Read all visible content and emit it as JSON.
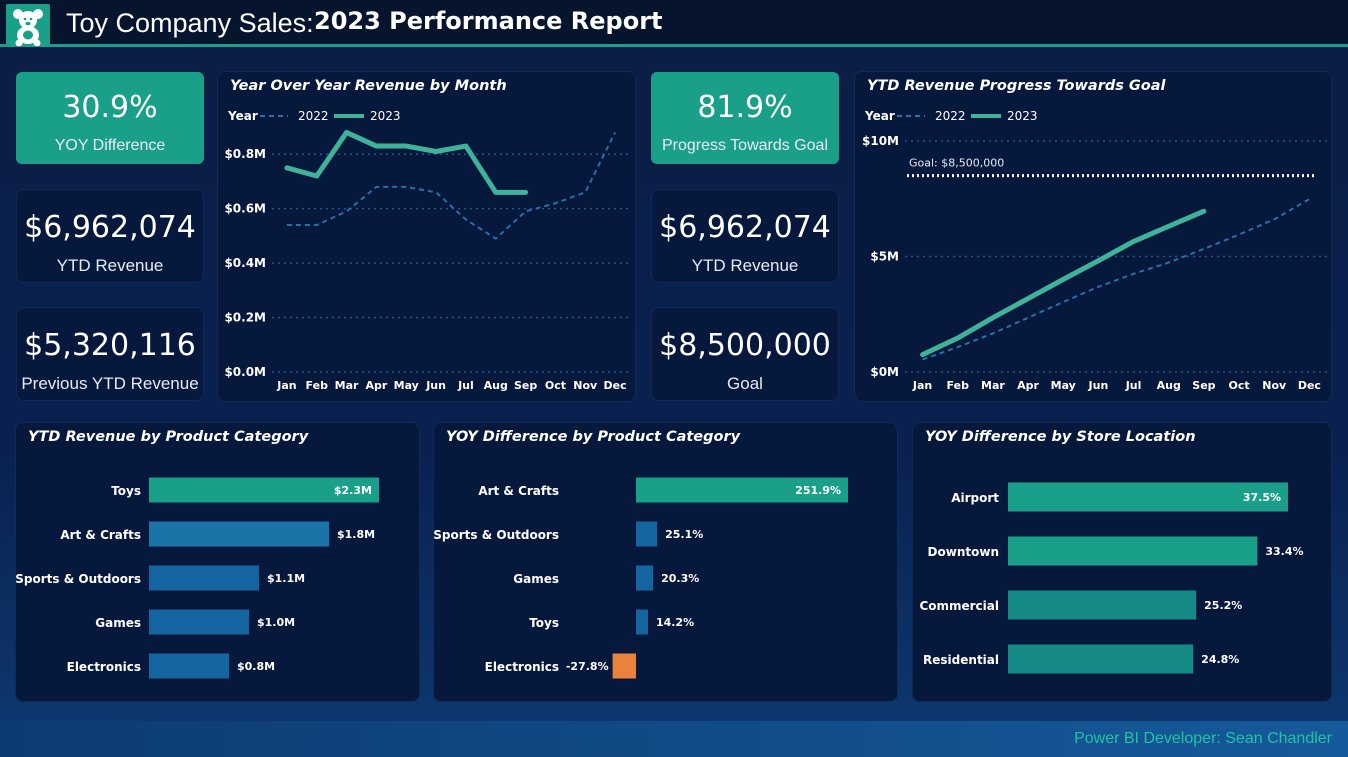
{
  "header": {
    "title_prefix": "Toy Company Sales:",
    "title_main": "2023 Performance Report"
  },
  "colors": {
    "accent": "#1aa089",
    "accent_light": "#3fb39a",
    "dark_blue": "#1565a0",
    "mid_blue": "#1a74a8",
    "negative": "#e8823c",
    "panel": "#07183d"
  },
  "kpis_left": [
    {
      "value": "30.9%",
      "label": "YOY Difference",
      "style": "green"
    },
    {
      "value": "$6,962,074",
      "label": "YTD Revenue",
      "style": "dark"
    },
    {
      "value": "$5,320,116",
      "label": "Previous YTD Revenue",
      "style": "dark"
    }
  ],
  "kpis_mid": [
    {
      "value": "81.9%",
      "label": "Progress Towards Goal",
      "style": "green"
    },
    {
      "value": "$6,962,074",
      "label": "YTD Revenue",
      "style": "dark"
    },
    {
      "value": "$8,500,000",
      "label": "Goal",
      "style": "dark"
    }
  ],
  "charts": {
    "yoy_month": {
      "title": "Year Over Year Revenue by Month",
      "legend_title": "Year",
      "legend": [
        "2022",
        "2023"
      ],
      "ytick_labels": [
        "$0.0M",
        "$0.2M",
        "$0.4M",
        "$0.6M",
        "$0.8M"
      ],
      "xtick_labels": [
        "Jan",
        "Feb",
        "Mar",
        "Apr",
        "May",
        "Jun",
        "Jul",
        "Aug",
        "Sep",
        "Oct",
        "Nov",
        "Dec"
      ]
    },
    "goal_progress": {
      "title": "YTD Revenue Progress Towards Goal",
      "legend_title": "Year",
      "legend": [
        "2022",
        "2023"
      ],
      "ytick_labels": [
        "$0M",
        "$5M",
        "$10M"
      ],
      "goal_label": "Goal: $8,500,000",
      "xtick_labels": [
        "Jan",
        "Feb",
        "Mar",
        "Apr",
        "May",
        "Jun",
        "Jul",
        "Aug",
        "Sep",
        "Oct",
        "Nov",
        "Dec"
      ]
    },
    "ytd_category": {
      "title": "YTD Revenue by Product Category"
    },
    "yoy_category": {
      "title": "YOY Difference by Product Category"
    },
    "yoy_store": {
      "title": "YOY Difference by Store Location"
    }
  },
  "chart_data": [
    {
      "type": "line",
      "title": "Year Over Year Revenue by Month",
      "x": [
        "Jan",
        "Feb",
        "Mar",
        "Apr",
        "May",
        "Jun",
        "Jul",
        "Aug",
        "Sep",
        "Oct",
        "Nov",
        "Dec"
      ],
      "ylim": [
        0,
        0.9
      ],
      "series": [
        {
          "name": "2022",
          "values": [
            0.54,
            0.54,
            0.59,
            0.68,
            0.68,
            0.66,
            0.56,
            0.49,
            0.59,
            0.62,
            0.66,
            0.88
          ],
          "style": "dashed"
        },
        {
          "name": "2023",
          "values": [
            0.75,
            0.72,
            0.88,
            0.83,
            0.83,
            0.81,
            0.83,
            0.66,
            0.66,
            null,
            null,
            null
          ],
          "style": "solid"
        }
      ]
    },
    {
      "type": "line",
      "title": "YTD Revenue Progress Towards Goal",
      "x": [
        "Jan",
        "Feb",
        "Mar",
        "Apr",
        "May",
        "Jun",
        "Jul",
        "Aug",
        "Sep",
        "Oct",
        "Nov",
        "Dec"
      ],
      "ylim": [
        0,
        10
      ],
      "goal": 8.5,
      "series": [
        {
          "name": "2022",
          "values": [
            0.54,
            1.08,
            1.67,
            2.35,
            3.03,
            3.69,
            4.25,
            4.74,
            5.33,
            5.95,
            6.61,
            7.49
          ],
          "style": "dashed"
        },
        {
          "name": "2023",
          "values": [
            0.75,
            1.47,
            2.35,
            3.18,
            4.01,
            4.82,
            5.65,
            6.31,
            6.96,
            null,
            null,
            null
          ],
          "style": "solid"
        }
      ]
    },
    {
      "type": "bar",
      "title": "YTD Revenue by Product Category",
      "categories": [
        "Toys",
        "Art & Crafts",
        "Sports & Outdoors",
        "Games",
        "Electronics"
      ],
      "values": [
        2.3,
        1.8,
        1.1,
        1.0,
        0.8
      ],
      "labels": [
        "$2.3M",
        "$1.8M",
        "$1.1M",
        "$1.0M",
        "$0.8M"
      ],
      "xlim": [
        0,
        2.3
      ]
    },
    {
      "type": "bar",
      "title": "YOY Difference by Product Category",
      "categories": [
        "Art & Crafts",
        "Sports & Outdoors",
        "Games",
        "Toys",
        "Electronics"
      ],
      "values": [
        251.9,
        25.1,
        20.3,
        14.2,
        -27.8
      ],
      "labels": [
        "251.9%",
        "25.1%",
        "20.3%",
        "14.2%",
        "-27.8%"
      ],
      "xlim": [
        -27.8,
        251.9
      ]
    },
    {
      "type": "bar",
      "title": "YOY Difference by Store Location",
      "categories": [
        "Airport",
        "Downtown",
        "Commercial",
        "Residential"
      ],
      "values": [
        37.5,
        33.4,
        25.2,
        24.8
      ],
      "labels": [
        "37.5%",
        "33.4%",
        "25.2%",
        "24.8%"
      ],
      "xlim": [
        0,
        37.5
      ]
    }
  ],
  "footer": {
    "credit": "Power BI Developer: Sean Chandler"
  }
}
